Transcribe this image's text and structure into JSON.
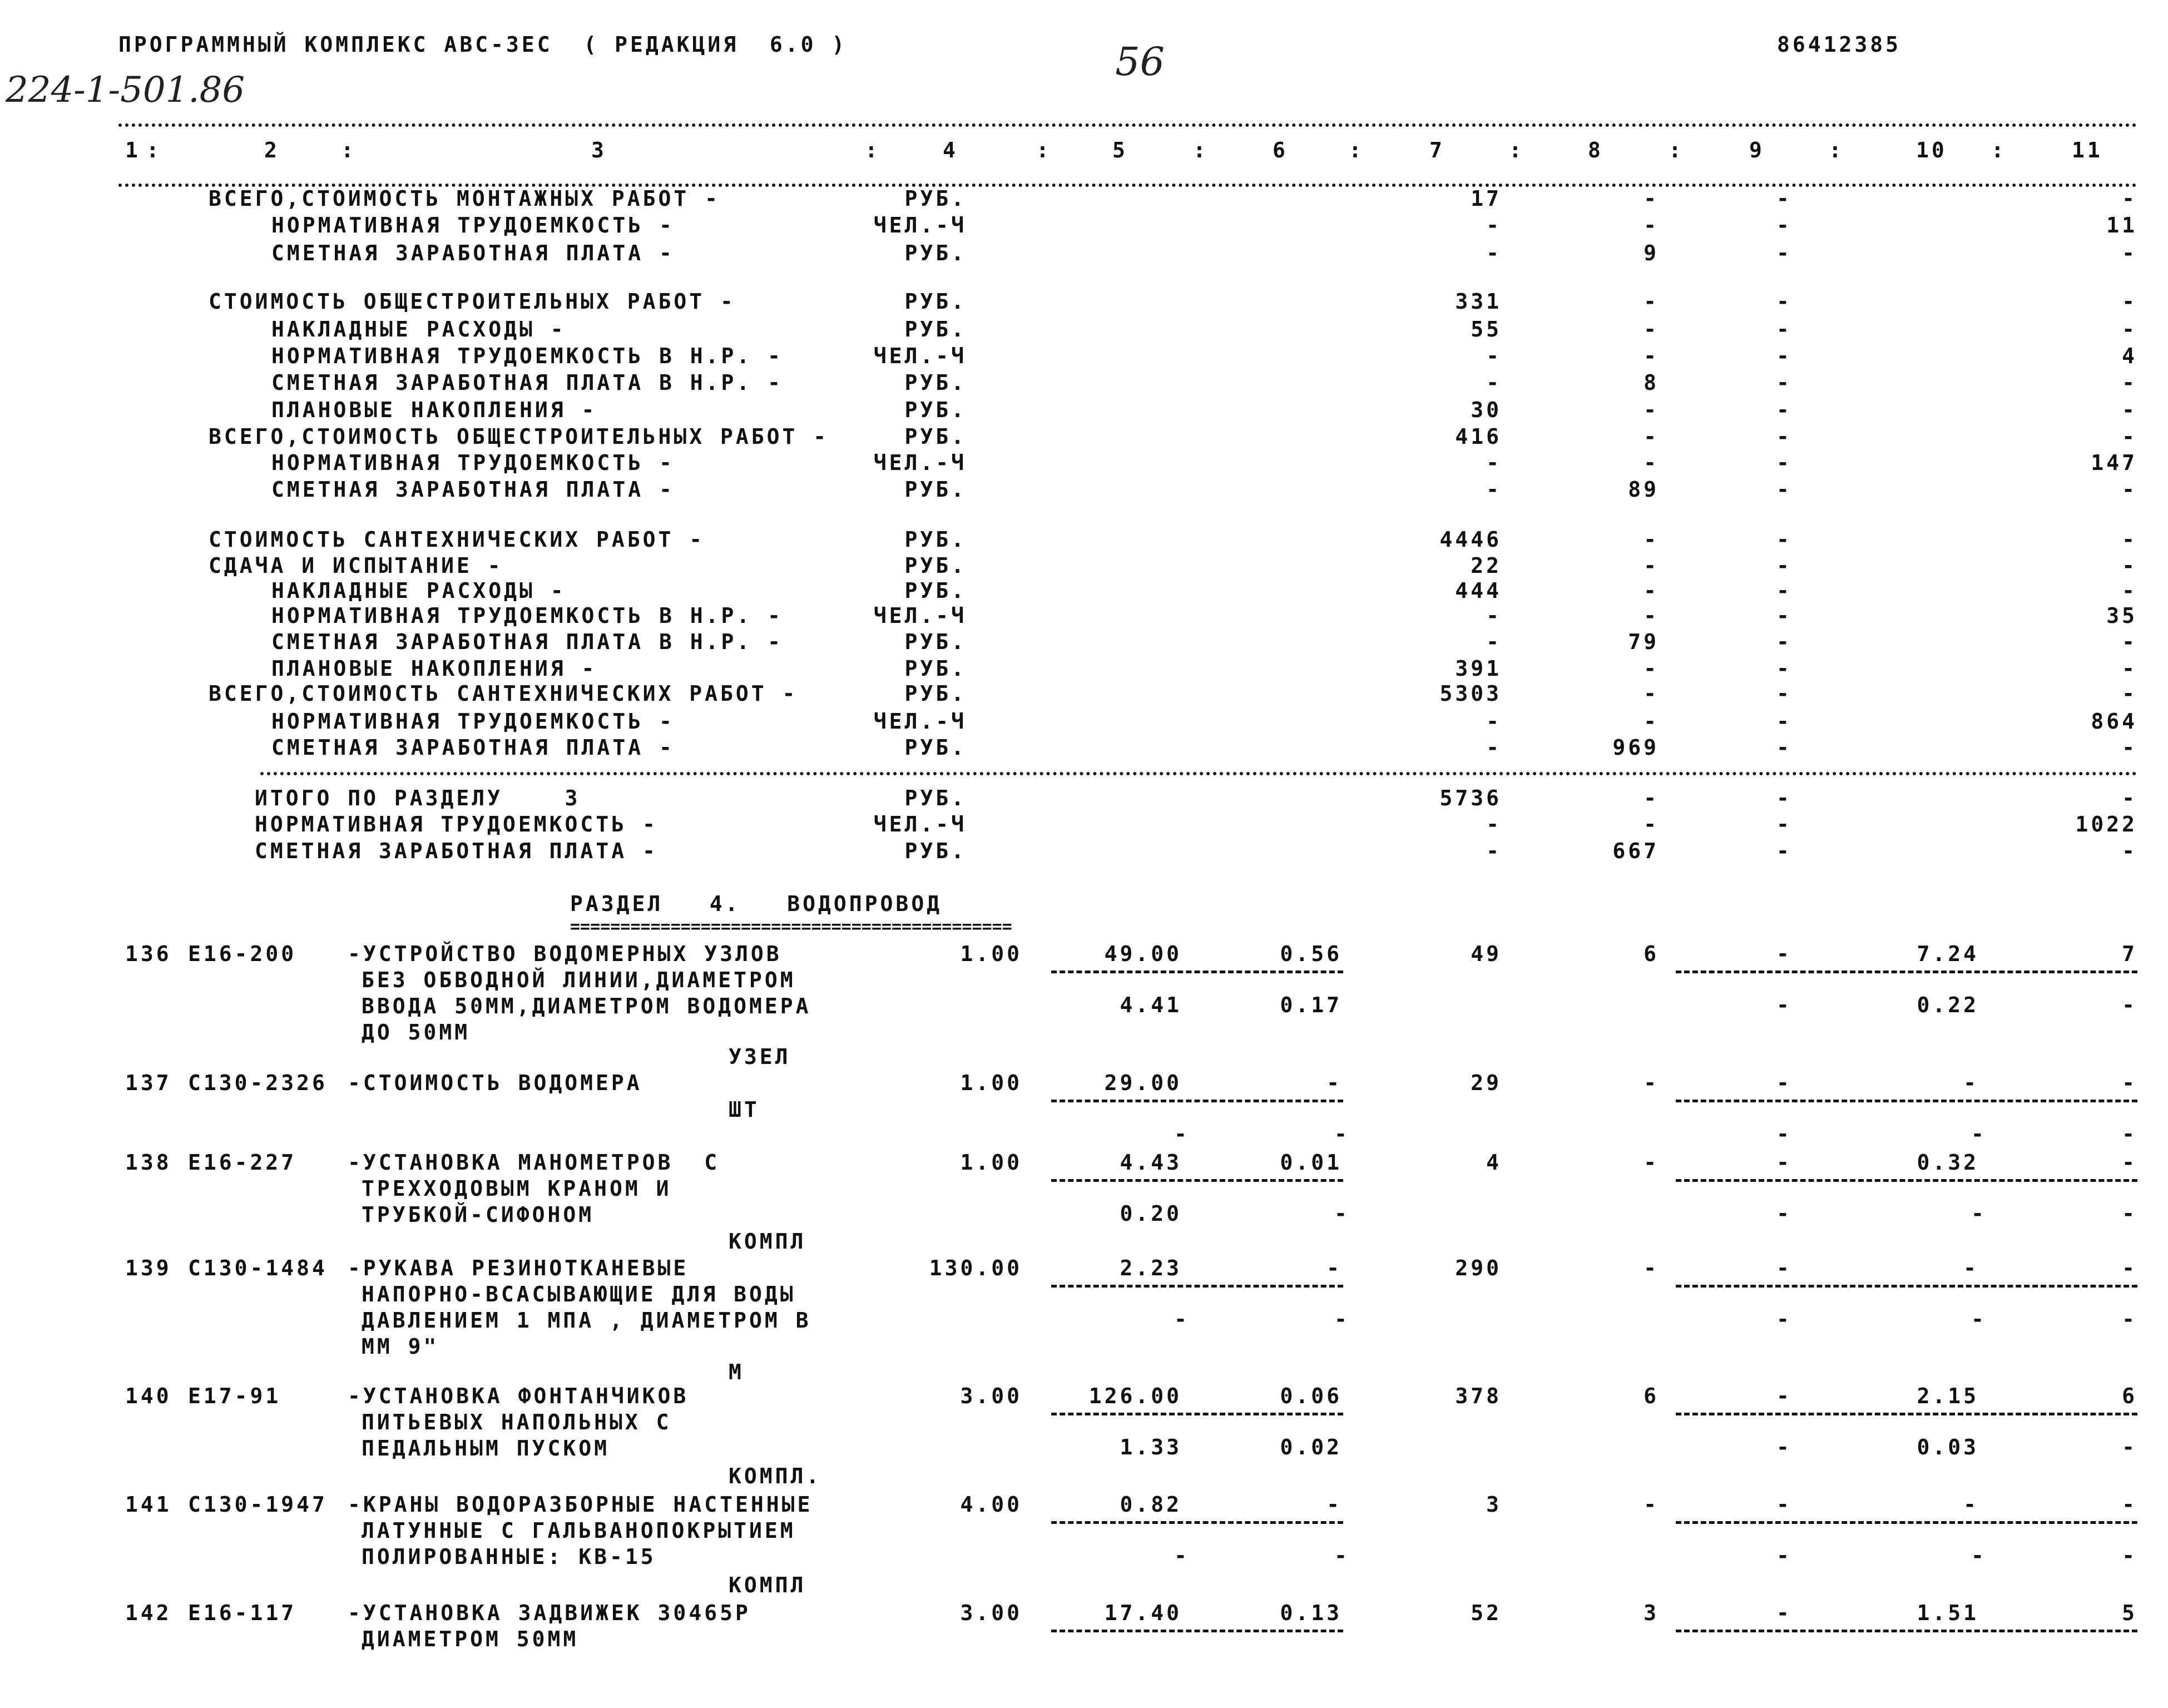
{
  "header": {
    "program_title": "ПРОГРАММНЫЙ КОМПЛЕКС АВС-ЗЕС  ( РЕДАКЦИЯ  6.0 )",
    "page_number_handwritten": "56",
    "document_code": "86412385",
    "project_number_handwritten": "224-1-501.86"
  },
  "columns": [
    "1",
    "2",
    "3",
    "4",
    "5",
    "6",
    "7",
    "8",
    "9",
    "10",
    "11"
  ],
  "summary_rows": [
    {
      "label": "ВСЕГО,СТОИМОСТЬ МОНТАЖНЫХ РАБОТ -",
      "indent": false,
      "unit": "РУБ.",
      "c7": "17",
      "c8": "-",
      "c9": "-",
      "c11": "-"
    },
    {
      "label": "НОРМАТИВНАЯ ТРУДОЕМКОСТЬ -",
      "indent": true,
      "unit": "ЧЕЛ.-Ч",
      "c7": "-",
      "c8": "-",
      "c9": "-",
      "c11": "11"
    },
    {
      "label": "СМЕТНАЯ ЗАРАБОТНАЯ ПЛАТА -",
      "indent": true,
      "unit": "РУБ.",
      "c7": "-",
      "c8": "9",
      "c9": "-",
      "c11": "-"
    },
    {
      "label": "СТОИМОСТЬ ОБЩЕСТРОИТЕЛЬНЫХ РАБОТ -",
      "indent": false,
      "unit": "РУБ.",
      "c7": "331",
      "c8": "-",
      "c9": "-",
      "c11": "-"
    },
    {
      "label": "НАКЛАДНЫЕ РАСХОДЫ -",
      "indent": true,
      "unit": "РУБ.",
      "c7": "55",
      "c8": "-",
      "c9": "-",
      "c11": "-"
    },
    {
      "label": "НОРМАТИВНАЯ ТРУДОЕМКОСТЬ В Н.Р. -",
      "indent": true,
      "unit": "ЧЕЛ.-Ч",
      "c7": "-",
      "c8": "-",
      "c9": "-",
      "c11": "4"
    },
    {
      "label": "СМЕТНАЯ ЗАРАБОТНАЯ ПЛАТА В Н.Р. -",
      "indent": true,
      "unit": "РУБ.",
      "c7": "-",
      "c8": "8",
      "c9": "-",
      "c11": "-"
    },
    {
      "label": "ПЛАНОВЫЕ НАКОПЛЕНИЯ -",
      "indent": true,
      "unit": "РУБ.",
      "c7": "30",
      "c8": "-",
      "c9": "-",
      "c11": "-"
    },
    {
      "label": "ВСЕГО,СТОИМОСТЬ ОБЩЕСТРОИТЕЛЬНЫХ РАБОТ -",
      "indent": false,
      "unit": "РУБ.",
      "c7": "416",
      "c8": "-",
      "c9": "-",
      "c11": "-"
    },
    {
      "label": "НОРМАТИВНАЯ ТРУДОЕМКОСТЬ -",
      "indent": true,
      "unit": "ЧЕЛ.-Ч",
      "c7": "-",
      "c8": "-",
      "c9": "-",
      "c11": "147"
    },
    {
      "label": "СМЕТНАЯ ЗАРАБОТНАЯ ПЛАТА -",
      "indent": true,
      "unit": "РУБ.",
      "c7": "-",
      "c8": "89",
      "c9": "-",
      "c11": "-"
    },
    {
      "label": "СТОИМОСТЬ САНТЕХНИЧЕСКИХ РАБОТ -",
      "indent": false,
      "unit": "РУБ.",
      "c7": "4446",
      "c8": "-",
      "c9": "-",
      "c11": "-"
    },
    {
      "label": "СДАЧА И ИСПЫТАНИЕ -",
      "indent": false,
      "unit": "РУБ.",
      "c7": "22",
      "c8": "-",
      "c9": "-",
      "c11": "-"
    },
    {
      "label": "НАКЛАДНЫЕ РАСХОДЫ -",
      "indent": true,
      "unit": "РУБ.",
      "c7": "444",
      "c8": "-",
      "c9": "-",
      "c11": "-"
    },
    {
      "label": "НОРМАТИВНАЯ ТРУДОЕМКОСТЬ В Н.Р. -",
      "indent": true,
      "unit": "ЧЕЛ.-Ч",
      "c7": "-",
      "c8": "-",
      "c9": "-",
      "c11": "35"
    },
    {
      "label": "СМЕТНАЯ ЗАРАБОТНАЯ ПЛАТА В Н.Р. -",
      "indent": true,
      "unit": "РУБ.",
      "c7": "-",
      "c8": "79",
      "c9": "-",
      "c11": "-"
    },
    {
      "label": "ПЛАНОВЫЕ НАКОПЛЕНИЯ -",
      "indent": true,
      "unit": "РУБ.",
      "c7": "391",
      "c8": "-",
      "c9": "-",
      "c11": "-"
    },
    {
      "label": "ВСЕГО,СТОИМОСТЬ САНТЕХНИЧЕСКИХ РАБОТ -",
      "indent": false,
      "unit": "РУБ.",
      "c7": "5303",
      "c8": "-",
      "c9": "-",
      "c11": "-"
    },
    {
      "label": "НОРМАТИВНАЯ ТРУДОЕМКОСТЬ -",
      "indent": true,
      "unit": "ЧЕЛ.-Ч",
      "c7": "-",
      "c8": "-",
      "c9": "-",
      "c11": "864"
    },
    {
      "label": "СМЕТНАЯ ЗАРАБОТНАЯ ПЛАТА -",
      "indent": true,
      "unit": "РУБ.",
      "c7": "-",
      "c8": "969",
      "c9": "-",
      "c11": "-"
    }
  ],
  "section_total": [
    {
      "label": "ИТОГО ПО РАЗДЕЛУ    3",
      "unit": "РУБ.",
      "c7": "5736",
      "c8": "-",
      "c9": "-",
      "c11": "-"
    },
    {
      "label": "НОРМАТИВНАЯ ТРУДОЕМКОСТЬ -",
      "unit": "ЧЕЛ.-Ч",
      "c7": "-",
      "c8": "-",
      "c9": "-",
      "c11": "1022"
    },
    {
      "label": "СМЕТНАЯ ЗАРАБОТНАЯ ПЛАТА -",
      "unit": "РУБ.",
      "c7": "-",
      "c8": "667",
      "c9": "-",
      "c11": "-"
    }
  ],
  "section": {
    "title": "РАЗДЕЛ   4.   ВОДОПРОВОД",
    "underline": "============================================"
  },
  "items": [
    {
      "num": "136",
      "code": "Е16-200",
      "desc": [
        "-УСТРОЙСТВО ВОДОМЕРНЫХ УЗЛОВ",
        "БЕЗ ОБВОДНОЙ ЛИНИИ,ДИАМЕТРОМ",
        "ВВОДА 50ММ,ДИАМЕТРОМ ВОДОМЕРА",
        "ДО 50ММ"
      ],
      "unit": "УЗЕЛ",
      "c4": "1.00",
      "c5": "49.00",
      "c6": "0.56",
      "c7": "49",
      "c8": "6",
      "c9": "-",
      "c10": "7.24",
      "c11": "7",
      "c5b": "4.41",
      "c6b": "0.17",
      "c9b": "-",
      "c10b": "0.22",
      "c11b": "-"
    },
    {
      "num": "137",
      "code": "С130-2326",
      "desc": [
        "-СТОИМОСТЬ ВОДОМЕРА"
      ],
      "unit": "ШТ",
      "c4": "1.00",
      "c5": "29.00",
      "c6": "-",
      "c7": "29",
      "c8": "-",
      "c9": "-",
      "c10": "-",
      "c11": "-",
      "c5b": "-",
      "c6b": "-",
      "c9b": "-",
      "c10b": "-",
      "c11b": "-"
    },
    {
      "num": "138",
      "code": "Е16-227",
      "desc": [
        "-УСТАНОВКА МАНОМЕТРОВ  С",
        "ТРЕХХОДОВЫМ КРАНОМ И",
        "ТРУБКОЙ-СИФОНОМ"
      ],
      "unit": "КОМПЛ",
      "c4": "1.00",
      "c5": "4.43",
      "c6": "0.01",
      "c7": "4",
      "c8": "-",
      "c9": "-",
      "c10": "0.32",
      "c11": "-",
      "c5b": "0.20",
      "c6b": "-",
      "c9b": "-",
      "c10b": "-",
      "c11b": "-"
    },
    {
      "num": "139",
      "code": "С130-1484",
      "desc": [
        "-РУКАВА РЕЗИНОТКАНЕВЫЕ",
        "НАПОРНО-ВСАСЫВАЮЩИЕ ДЛЯ ВОДЫ",
        "ДАВЛЕНИЕМ 1 МПА , ДИАМЕТРОМ В",
        "ММ 9\""
      ],
      "unit": "М",
      "c4": "130.00",
      "c5": "2.23",
      "c6": "-",
      "c7": "290",
      "c8": "-",
      "c9": "-",
      "c10": "-",
      "c11": "-",
      "c5b": "-",
      "c6b": "-",
      "c9b": "-",
      "c10b": "-",
      "c11b": "-"
    },
    {
      "num": "140",
      "code": "Е17-91",
      "desc": [
        "-УСТАНОВКА ФОНТАНЧИКОВ",
        "ПИТЬЕВЫХ НАПОЛЬНЫХ С",
        "ПЕДАЛЬНЫМ ПУСКОМ"
      ],
      "unit": "КОМПЛ.",
      "c4": "3.00",
      "c5": "126.00",
      "c6": "0.06",
      "c7": "378",
      "c8": "6",
      "c9": "-",
      "c10": "2.15",
      "c11": "6",
      "c5b": "1.33",
      "c6b": "0.02",
      "c9b": "-",
      "c10b": "0.03",
      "c11b": "-"
    },
    {
      "num": "141",
      "code": "С130-1947",
      "desc": [
        "-КРАНЫ ВОДОРАЗБОРНЫЕ НАСТЕННЫЕ",
        "ЛАТУННЫЕ С ГАЛЬВАНОПОКРЫТИЕМ",
        "ПОЛИРОВАННЫЕ: КВ-15"
      ],
      "unit": "КОМПЛ",
      "c4": "4.00",
      "c5": "0.82",
      "c6": "-",
      "c7": "3",
      "c8": "-",
      "c9": "-",
      "c10": "-",
      "c11": "-",
      "c5b": "-",
      "c6b": "-",
      "c9b": "-",
      "c10b": "-",
      "c11b": "-"
    },
    {
      "num": "142",
      "code": "Е16-117",
      "desc": [
        "-УСТАНОВКА ЗАДВИЖЕК 30465Р",
        "ДИАМЕТРОМ 50ММ"
      ],
      "unit": "",
      "c4": "3.00",
      "c5": "17.40",
      "c6": "0.13",
      "c7": "52",
      "c8": "3",
      "c9": "-",
      "c10": "1.51",
      "c11": "5"
    }
  ]
}
